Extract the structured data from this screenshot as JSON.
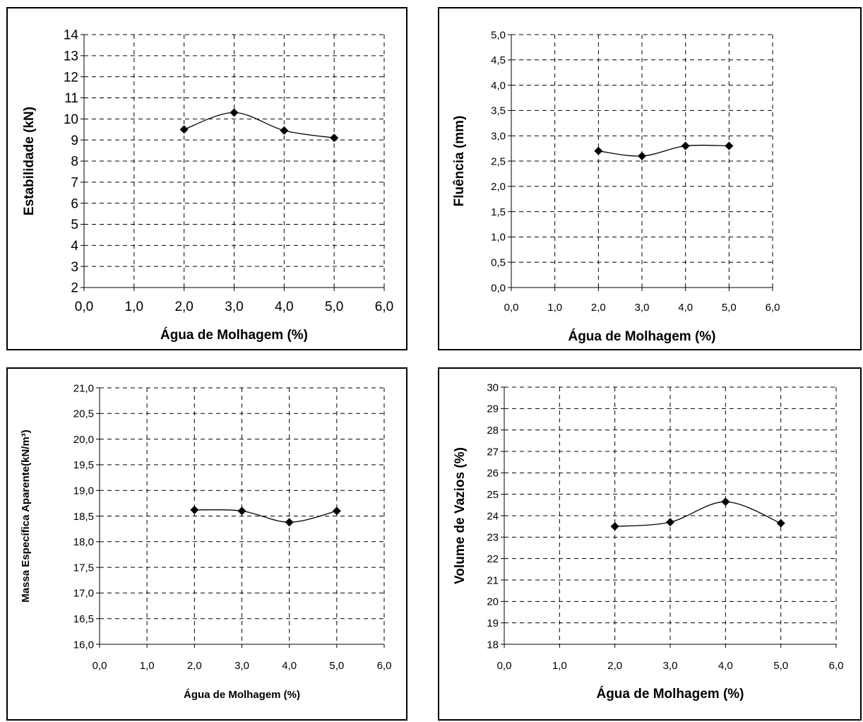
{
  "chart_data": [
    {
      "type": "line",
      "xlabel": "Água de Molhagem (%)",
      "ylabel": "Estabilidade (kN)",
      "xlim": [
        0,
        6
      ],
      "ylim": [
        2,
        14
      ],
      "x_ticks": [
        "0,0",
        "1,0",
        "2,0",
        "3,0",
        "4,0",
        "5,0",
        "6,0"
      ],
      "y_ticks": [
        "2",
        "3",
        "4",
        "5",
        "6",
        "7",
        "8",
        "9",
        "10",
        "11",
        "12",
        "13",
        "14"
      ],
      "grid": true,
      "marker": "diamond",
      "x": [
        2,
        3,
        4,
        5
      ],
      "y": [
        9.5,
        10.3,
        9.45,
        9.1
      ]
    },
    {
      "type": "line",
      "xlabel": "Água de Molhagem (%)",
      "ylabel": "Fluência (mm)",
      "xlim": [
        0,
        6
      ],
      "ylim": [
        0,
        5
      ],
      "x_ticks": [
        "0,0",
        "1,0",
        "2,0",
        "3,0",
        "4,0",
        "5,0",
        "6,0"
      ],
      "y_ticks": [
        "0,0",
        "0,5",
        "1,0",
        "1,5",
        "2,0",
        "2,5",
        "3,0",
        "3,5",
        "4,0",
        "4,5",
        "5,0"
      ],
      "grid": true,
      "marker": "diamond",
      "x": [
        2,
        3,
        4,
        5
      ],
      "y": [
        2.7,
        2.6,
        2.8,
        2.8
      ]
    },
    {
      "type": "line",
      "xlabel": "Água de Molhagem (%)",
      "ylabel": "Massa Específica Aparente(kN/m³)",
      "xlim": [
        0,
        6
      ],
      "ylim": [
        16,
        21
      ],
      "x_ticks": [
        "0,0",
        "1,0",
        "2,0",
        "3,0",
        "4,0",
        "5,0",
        "6,0"
      ],
      "y_ticks": [
        "16,0",
        "16,5",
        "17,0",
        "17,5",
        "18,0",
        "18,5",
        "19,0",
        "19,5",
        "20,0",
        "20,5",
        "21,0"
      ],
      "grid": true,
      "marker": "diamond",
      "x": [
        2,
        3,
        4,
        5
      ],
      "y": [
        18.62,
        18.6,
        18.38,
        18.6
      ]
    },
    {
      "type": "line",
      "xlabel": "Água de Molhagem (%)",
      "ylabel": "Volume de Vazios (%)",
      "xlim": [
        0,
        6
      ],
      "ylim": [
        18,
        30
      ],
      "x_ticks": [
        "0,0",
        "1,0",
        "2,0",
        "3,0",
        "4,0",
        "5,0",
        "6,0"
      ],
      "y_ticks": [
        "18",
        "19",
        "20",
        "21",
        "22",
        "23",
        "24",
        "25",
        "26",
        "27",
        "28",
        "29",
        "30"
      ],
      "grid": true,
      "marker": "diamond",
      "x": [
        2,
        3,
        4,
        5
      ],
      "y": [
        23.5,
        23.7,
        24.65,
        23.65
      ]
    }
  ]
}
